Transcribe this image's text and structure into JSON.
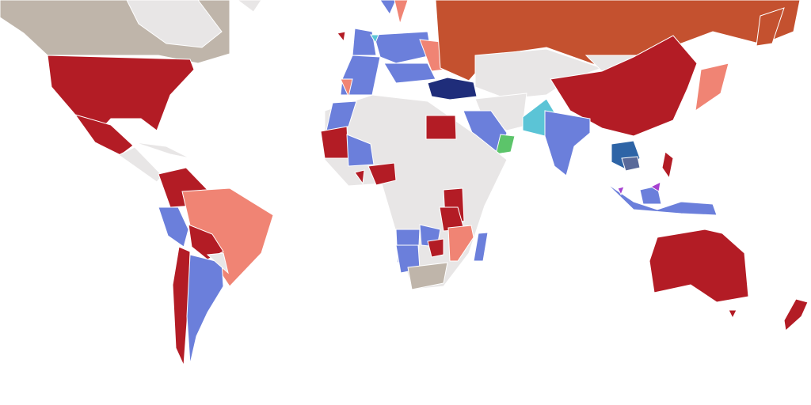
{
  "map": {
    "colors": [
      "#e8e6e6",
      "#bfb5aa",
      "#b31c25",
      "#f08474",
      "#6b7fdb",
      "#c4512f",
      "#1f2d7a",
      "#5bc4d6",
      "#5cc46a",
      "#a640d0",
      "#2e64a6",
      "#5a6a9a"
    ]
  }
}
